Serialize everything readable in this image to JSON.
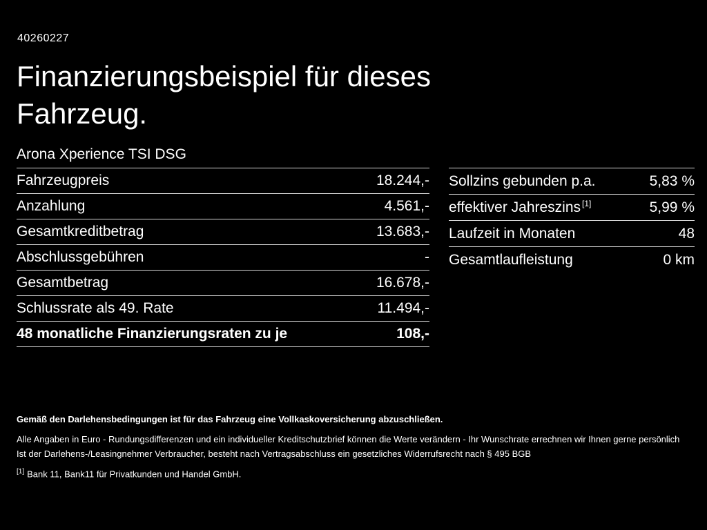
{
  "page": {
    "id_code": "40260227",
    "title": "Finanzierungsbeispiel für dieses Fahrzeug.",
    "subtitle": "Arona Xperience TSI DSG"
  },
  "left_table": {
    "rows": [
      {
        "label": "Fahrzeugpreis",
        "value": "18.244,-"
      },
      {
        "label": "Anzahlung",
        "value": "4.561,-"
      },
      {
        "label": "Gesamtkreditbetrag",
        "value": "13.683,-"
      },
      {
        "label": "Abschlussgebühren",
        "value": "-"
      },
      {
        "label": "Gesamtbetrag",
        "value": "16.678,-"
      },
      {
        "label": "Schlussrate als 49. Rate",
        "value": "11.494,-"
      },
      {
        "label": "48 monatliche Finanzierungsraten zu je",
        "value": "108,-"
      }
    ]
  },
  "right_table": {
    "rows": [
      {
        "label": "Sollzins gebunden p.a.",
        "sup": "",
        "value": "5,83 %"
      },
      {
        "label": "effektiver Jahreszins",
        "sup": "[1]",
        "value": "5,99 %"
      },
      {
        "label": "Laufzeit in Monaten",
        "sup": "",
        "value": "48"
      },
      {
        "label": "Gesamtlaufleistung",
        "sup": "",
        "value": "0 km"
      }
    ]
  },
  "footer": {
    "insurance_note": "Gemäß den Darlehensbedingungen ist für das Fahrzeug eine Vollkaskoversicherung abzuschließen.",
    "disclaimer_line1": "Alle Angaben in Euro - Rundungsdifferenzen und ein individueller Kreditschutzbrief können die Werte verändern - Ihr Wunschrate errechnen wir Ihnen gerne persönlich",
    "disclaimer_line2": "Ist der Darlehens-/Leasingnehmer Verbraucher, besteht nach Vertragsabschluss ein gesetzliches Widerrufsrecht nach § 495 BGB",
    "footnote_marker": "[1]",
    "footnote_text": "Bank 11, Bank11 für Privatkunden und Handel GmbH."
  }
}
